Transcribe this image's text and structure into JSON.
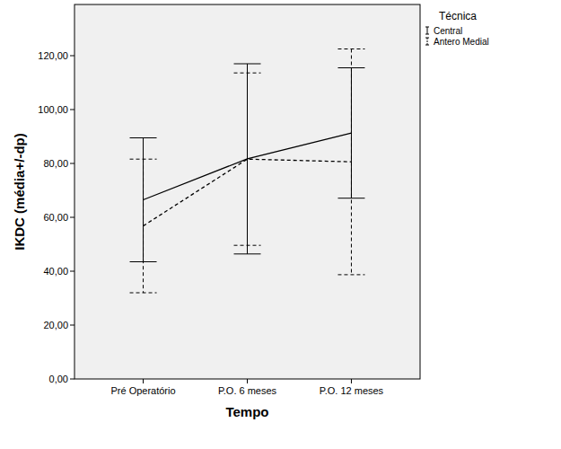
{
  "chart_data": {
    "type": "line",
    "x_label": "Tempo",
    "y_label": "IKDC (média+/-dp)",
    "legend_title": "Técnica",
    "legend": "top-right",
    "categories": [
      "Pré Operatório",
      "P.O. 6 meses",
      "P.O. 12 meses"
    ],
    "series": [
      {
        "name": "Central",
        "color": "#000000",
        "line_style": "solid",
        "values": [
          66.5,
          81.7,
          91.3
        ],
        "errors": [
          23.0,
          35.3,
          24.2
        ]
      },
      {
        "name": "Antero Medial",
        "color": "#000000",
        "line_style": "dashed",
        "values": [
          56.8,
          81.6,
          80.6
        ],
        "errors": [
          24.8,
          32.0,
          41.9
        ]
      }
    ],
    "ylim": [
      0,
      139
    ],
    "yticks": [
      {
        "value": 0,
        "label": "0,00"
      },
      {
        "value": 20,
        "label": "20,00"
      },
      {
        "value": 40,
        "label": "40,00"
      },
      {
        "value": 60,
        "label": "60,00"
      },
      {
        "value": 80,
        "label": "80,00"
      },
      {
        "value": 100,
        "label": "100,00"
      },
      {
        "value": 120,
        "label": "120,00"
      }
    ],
    "grid": false
  }
}
